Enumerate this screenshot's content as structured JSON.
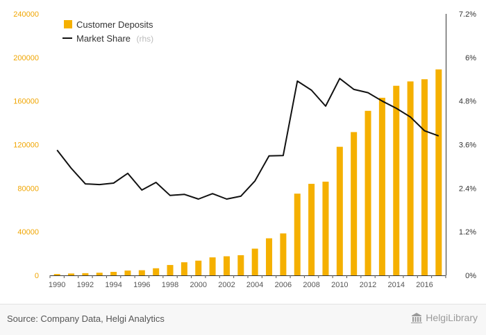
{
  "chart_data": {
    "type": "bar+line",
    "x": [
      "1990",
      "1991",
      "1992",
      "1993",
      "1994",
      "1995",
      "1996",
      "1997",
      "1998",
      "1999",
      "2000",
      "2001",
      "2002",
      "2003",
      "2004",
      "2005",
      "2006",
      "2007",
      "2008",
      "2009",
      "2010",
      "2011",
      "2012",
      "2013",
      "2014",
      "2015",
      "2016",
      "2017"
    ],
    "x_tick_labels": [
      "1990",
      "1992",
      "1994",
      "1996",
      "1998",
      "2000",
      "2002",
      "2004",
      "2006",
      "2008",
      "2010",
      "2012",
      "2014",
      "2016"
    ],
    "series": [
      {
        "name": "Customer Deposits",
        "type": "bar",
        "axis": "left",
        "color": "#f5b000",
        "values": [
          1200,
          1700,
          2000,
          2400,
          3200,
          4400,
          4700,
          6500,
          9500,
          12000,
          13500,
          16500,
          17500,
          18500,
          24500,
          34000,
          38500,
          75000,
          84000,
          86000,
          118000,
          131500,
          151000,
          163000,
          174000,
          178000,
          180000,
          189000
        ]
      },
      {
        "name": "Market Share",
        "name_suffix": "(rhs)",
        "type": "line",
        "axis": "right",
        "color": "#111111",
        "values": [
          3.45,
          2.95,
          2.52,
          2.5,
          2.54,
          2.81,
          2.35,
          2.56,
          2.2,
          2.23,
          2.1,
          2.25,
          2.1,
          2.18,
          2.6,
          3.29,
          3.3,
          5.35,
          5.1,
          4.66,
          5.42,
          5.12,
          5.03,
          4.8,
          4.6,
          4.36,
          3.98,
          3.84
        ]
      }
    ],
    "y_left": {
      "lim": [
        0,
        240000
      ],
      "ticks": [
        "0",
        "40000",
        "80000",
        "120000",
        "160000",
        "200000",
        "240000"
      ]
    },
    "y_right": {
      "lim": [
        0,
        7.2
      ],
      "ticks": [
        "0%",
        "1.2%",
        "2.4%",
        "3.6%",
        "4.8%",
        "6%",
        "7.2%"
      ]
    },
    "legend": "top-left",
    "grid": false
  },
  "footer": {
    "source": "Source: Company Data, Helgi Analytics",
    "brand": "HelgiLibrary",
    "brand_icon": "library-building-icon"
  }
}
